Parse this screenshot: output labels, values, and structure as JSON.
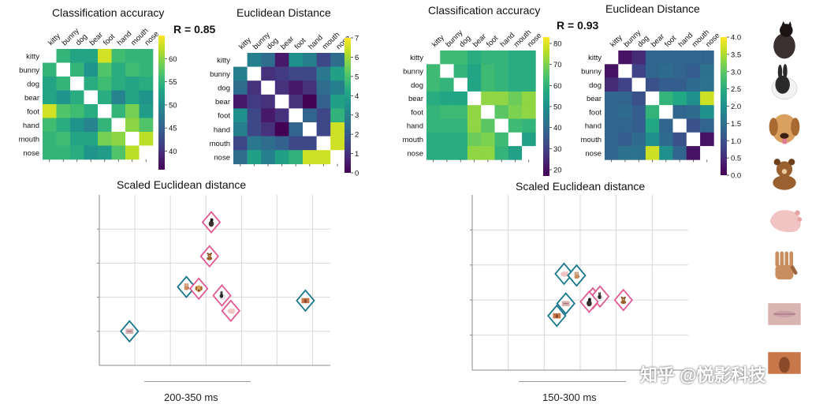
{
  "categories": [
    "kitty",
    "bunny",
    "dog",
    "bear",
    "foot",
    "hand",
    "mouth",
    "nose"
  ],
  "left": {
    "accuracy": {
      "title": "Classification accuracy",
      "r_label": "R = 0.85",
      "colorbar": {
        "min": 36,
        "max": 65,
        "ticks": [
          "40",
          "45",
          "50",
          "55",
          "60"
        ],
        "tick_values": [
          40,
          45,
          50,
          55,
          60
        ]
      },
      "matrix": [
        [
          null,
          55,
          53,
          53,
          63,
          56,
          55,
          55
        ],
        [
          55,
          null,
          55,
          51,
          57,
          54,
          56,
          55
        ],
        [
          53,
          55,
          null,
          54,
          56,
          54,
          53,
          54
        ],
        [
          53,
          51,
          54,
          null,
          54,
          49,
          53,
          51
        ],
        [
          63,
          57,
          56,
          54,
          null,
          55,
          59,
          52
        ],
        [
          56,
          54,
          51,
          49,
          55,
          null,
          60,
          57
        ],
        [
          55,
          56,
          53,
          53,
          59,
          60,
          null,
          62
        ],
        [
          55,
          55,
          54,
          51,
          52,
          57,
          62,
          null
        ]
      ]
    },
    "distance": {
      "title": "Euclidean Distance",
      "colorbar": {
        "min": 0,
        "max": 7,
        "ticks": [
          "0",
          "1",
          "2",
          "3",
          "4",
          "5",
          "6",
          "7"
        ],
        "tick_values": [
          0,
          1,
          2,
          3,
          4,
          5,
          6,
          7
        ]
      },
      "matrix": [
        [
          null,
          3.0,
          2.5,
          0.5,
          3.5,
          3.0,
          1.5,
          2.5
        ],
        [
          3.0,
          null,
          1.0,
          1.2,
          1.5,
          1.5,
          2.8,
          4.0
        ],
        [
          2.5,
          1.0,
          null,
          1.0,
          0.5,
          1.0,
          2.5,
          3.0
        ],
        [
          0.5,
          1.2,
          1.0,
          null,
          1.0,
          0.0,
          2.2,
          4.0
        ],
        [
          3.5,
          1.5,
          0.5,
          1.0,
          null,
          2.3,
          1.5,
          4.5
        ],
        [
          3.0,
          1.5,
          1.0,
          0.0,
          2.3,
          null,
          1.5,
          6.5
        ],
        [
          1.5,
          2.8,
          2.5,
          2.2,
          1.5,
          1.5,
          null,
          6.5
        ],
        [
          2.5,
          4.0,
          3.0,
          4.0,
          4.5,
          6.5,
          6.5,
          null
        ]
      ]
    },
    "scaled": {
      "title": "Scaled Euclidean distance",
      "time_window": "200-350 ms",
      "points": [
        {
          "label": "kitty",
          "x": 3.15,
          "y": 4.2,
          "group": "pink"
        },
        {
          "label": "bear",
          "x": 3.1,
          "y": 3.2,
          "group": "pink"
        },
        {
          "label": "hand",
          "x": 2.45,
          "y": 2.3,
          "group": "teal"
        },
        {
          "label": "dog",
          "x": 2.8,
          "y": 2.25,
          "group": "pink"
        },
        {
          "label": "bunny",
          "x": 3.45,
          "y": 2.05,
          "group": "pink"
        },
        {
          "label": "foot",
          "x": 3.7,
          "y": 1.6,
          "group": "pink"
        },
        {
          "label": "nose",
          "x": 5.8,
          "y": 1.9,
          "group": "teal"
        },
        {
          "label": "mouth",
          "x": 0.85,
          "y": 1.0,
          "group": "teal"
        }
      ]
    }
  },
  "right": {
    "accuracy": {
      "title": "Classification accuracy",
      "r_label": "R = 0.93",
      "colorbar": {
        "min": 17,
        "max": 83,
        "ticks": [
          "20",
          "30",
          "40",
          "50",
          "60",
          "70",
          "80"
        ],
        "tick_values": [
          20,
          30,
          40,
          50,
          60,
          70,
          80
        ]
      },
      "matrix": [
        [
          null,
          62,
          62,
          58,
          60,
          60,
          58,
          58
        ],
        [
          62,
          null,
          60,
          56,
          62,
          60,
          58,
          58
        ],
        [
          62,
          60,
          null,
          56,
          62,
          60,
          58,
          58
        ],
        [
          58,
          56,
          56,
          null,
          72,
          72,
          68,
          72
        ],
        [
          60,
          62,
          62,
          72,
          null,
          66,
          70,
          72
        ],
        [
          60,
          60,
          60,
          72,
          66,
          null,
          62,
          60
        ],
        [
          58,
          58,
          58,
          68,
          70,
          62,
          null,
          55
        ],
        [
          58,
          58,
          58,
          72,
          72,
          60,
          55,
          null
        ]
      ]
    },
    "distance": {
      "title": "Euclidean Distance",
      "colorbar": {
        "min": 0,
        "max": 4.0,
        "ticks": [
          "0.0",
          "0.5",
          "1.0",
          "1.5",
          "2.0",
          "2.5",
          "3.0",
          "3.5",
          "4.0"
        ],
        "tick_values": [
          0,
          0.5,
          1,
          1.5,
          2,
          2.5,
          3,
          3.5,
          4
        ]
      },
      "matrix": [
        [
          null,
          0.2,
          0.5,
          1.3,
          1.3,
          1.3,
          1.3,
          1.3
        ],
        [
          0.2,
          null,
          0.8,
          1.3,
          1.4,
          1.3,
          1.2,
          1.5
        ],
        [
          0.5,
          0.8,
          null,
          1.0,
          1.2,
          1.2,
          1.4,
          1.5
        ],
        [
          1.3,
          1.3,
          1.0,
          null,
          2.6,
          2.4,
          2.0,
          3.7
        ],
        [
          1.3,
          1.4,
          1.2,
          2.6,
          null,
          1.3,
          1.4,
          2.0
        ],
        [
          1.3,
          1.3,
          1.2,
          2.4,
          1.3,
          null,
          1.0,
          1.3
        ],
        [
          1.3,
          1.2,
          1.4,
          2.0,
          1.4,
          1.0,
          null,
          0.2
        ],
        [
          1.3,
          1.5,
          1.5,
          3.7,
          2.0,
          1.3,
          0.2,
          null
        ]
      ]
    },
    "scaled": {
      "title": "Scaled Euclidean distance",
      "time_window": "150-300 ms",
      "points": [
        {
          "label": "foot",
          "x": 2.55,
          "y": 2.75,
          "group": "teal"
        },
        {
          "label": "hand",
          "x": 2.9,
          "y": 2.7,
          "group": "teal"
        },
        {
          "label": "dog",
          "x": 3.35,
          "y": 2.05,
          "group": "pink"
        },
        {
          "label": "bunny",
          "x": 3.55,
          "y": 2.1,
          "group": "pink"
        },
        {
          "label": "kitty",
          "x": 3.25,
          "y": 1.95,
          "group": "pink"
        },
        {
          "label": "bear",
          "x": 4.2,
          "y": 2.0,
          "group": "pink"
        },
        {
          "label": "mouth",
          "x": 2.6,
          "y": 1.9,
          "group": "teal"
        },
        {
          "label": "nose",
          "x": 2.35,
          "y": 1.55,
          "group": "teal"
        }
      ]
    }
  },
  "colors": {
    "teal": "#18778a",
    "pink": "#e05a93",
    "grid": "#d9d9d9",
    "axis": "#888888"
  },
  "side_icons": [
    "kitty",
    "bunny",
    "dog",
    "bear",
    "foot",
    "hand",
    "mouth",
    "nose"
  ],
  "watermark": "知乎 @悦影科技"
}
